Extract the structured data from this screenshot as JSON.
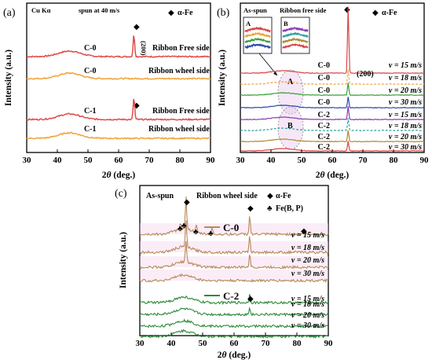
{
  "chart_data": [
    {
      "panel_label": "(a)",
      "type": "line",
      "xlabel_theta": "θ",
      "xlabel_unit": " (deg.)",
      "ylabel": "Intensity (a.u.)",
      "xlim": [
        30,
        90
      ],
      "x_ticks": [
        30,
        40,
        50,
        60,
        70,
        80,
        90
      ],
      "radiation": "Cu Kα",
      "condition": "spun at 40 m/s",
      "legend": {
        "symbol": "◆",
        "label": "α-Fe"
      },
      "peak_label": "(200)",
      "series": [
        {
          "alloy": "C-0",
          "side": "Ribbon Free side",
          "color": "#e24a4a",
          "broad_center": 44,
          "peaks": [
            65
          ]
        },
        {
          "alloy": "C-0",
          "side": "Ribbon wheel side",
          "color": "#f0a33a",
          "broad_center": 44,
          "peaks": []
        },
        {
          "alloy": "C-1",
          "side": "Ribbon Free side",
          "color": "#e24a4a",
          "broad_center": 44,
          "peaks": [
            65
          ]
        },
        {
          "alloy": "C-1",
          "side": "Ribbon wheel side",
          "color": "#f0a33a",
          "broad_center": 44,
          "peaks": []
        }
      ]
    },
    {
      "panel_label": "(b)",
      "type": "line",
      "xlabel_theta": "θ",
      "xlabel_unit": " (deg.)",
      "ylabel": "Intensity (a.u.)",
      "xlim": [
        30,
        90
      ],
      "x_ticks": [
        30,
        40,
        50,
        60,
        70,
        80,
        90
      ],
      "header_left": "As-spun",
      "header_right": "Ribbon free side",
      "legend": {
        "symbol": "◆",
        "label": "α-Fe"
      },
      "peak_label": "(200)",
      "zoom_labels": [
        "A",
        "B"
      ],
      "series": [
        {
          "alloy": "C-0",
          "v": "v = 15 m/s",
          "color": "#d94545",
          "style": "solid",
          "peak_height": 1.0
        },
        {
          "alloy": "C-0",
          "v": "v = 18 m/s",
          "color": "#f0a33a",
          "style": "dashed",
          "peak_height": 0.35
        },
        {
          "alloy": "C-0",
          "v": "v = 20 m/s",
          "color": "#3aa03a",
          "style": "solid",
          "peak_height": 0.25
        },
        {
          "alloy": "C-0",
          "v": "v = 30 m/s",
          "color": "#2c47b0",
          "style": "solid",
          "peak_height": 0.2
        },
        {
          "alloy": "C-2",
          "v": "v = 15 m/s",
          "color": "#8a3ab0",
          "style": "solid",
          "peak_height": 0.3
        },
        {
          "alloy": "C-2",
          "v": "v = 18 m/s",
          "color": "#2fa0a0",
          "style": "dashed",
          "peak_height": 0.25
        },
        {
          "alloy": "C-2",
          "v": "v = 20 m/s",
          "color": "#b08a2a",
          "style": "solid",
          "peak_height": 0.2
        },
        {
          "alloy": "C-2",
          "v": "v = 30 m/s",
          "color": "#d94545",
          "style": "solid",
          "peak_height": 0.15
        }
      ]
    },
    {
      "panel_label": "(c)",
      "type": "line",
      "xlabel_theta": "θ",
      "xlabel_unit": " (deg.)",
      "ylabel": "Intensity (a.u.)",
      "xlim": [
        30,
        90
      ],
      "x_ticks": [
        30,
        40,
        50,
        60,
        70,
        80,
        90
      ],
      "header_left": "As-spun",
      "header_right": "Ribbon wheel side",
      "legend": [
        {
          "symbol": "◆",
          "label": "α-Fe"
        },
        {
          "symbol": "♣",
          "label": "Fe(B, P)"
        }
      ],
      "group_labels": [
        "C-0",
        "C-2"
      ],
      "series": [
        {
          "alloy": "C-0",
          "v": "v = 15 m/s",
          "color": "#b8895a",
          "peaks": [
            43,
            44.7,
            48,
            53,
            65,
            82.5
          ]
        },
        {
          "alloy": "C-0",
          "v": "v = 18 m/s",
          "color": "#b8895a",
          "peaks": [
            44.7,
            65
          ]
        },
        {
          "alloy": "C-0",
          "v": "v = 20 m/s",
          "color": "#b8895a",
          "peaks": [
            44.7,
            65
          ]
        },
        {
          "alloy": "C-0",
          "v": "v = 30 m/s",
          "color": "#b8895a",
          "peaks": []
        },
        {
          "alloy": "C-2",
          "v": "v = 15 m/s",
          "color": "#2e8a3a",
          "peaks": [
            65
          ]
        },
        {
          "alloy": "C-2",
          "v": "v = 18 m/s",
          "color": "#2e8a3a",
          "peaks": [
            65
          ]
        },
        {
          "alloy": "C-2",
          "v": "v = 20 m/s",
          "color": "#2e8a3a",
          "peaks": []
        },
        {
          "alloy": "C-2",
          "v": "v = 30 m/s",
          "color": "#2e8a3a",
          "peaks": []
        }
      ]
    }
  ]
}
